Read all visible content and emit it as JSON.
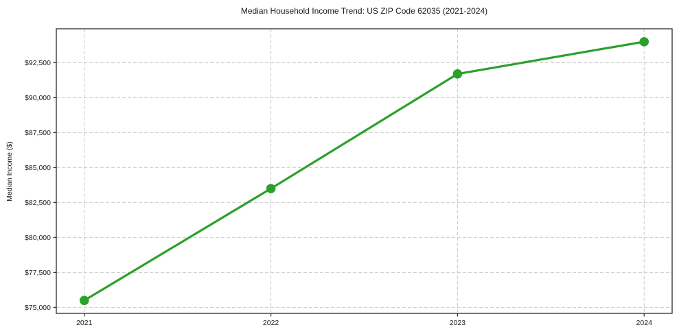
{
  "chart_data": {
    "type": "line",
    "title": "Median Household Income Trend: US ZIP Code 62035 (2021-2024)",
    "xlabel": "",
    "ylabel": "Median Income ($)",
    "categories": [
      "2021",
      "2022",
      "2023",
      "2024"
    ],
    "values": [
      75500,
      83500,
      91700,
      94000
    ],
    "ylim": [
      74575,
      94925
    ],
    "yticks": [
      {
        "value": 75000,
        "label": "$75,000"
      },
      {
        "value": 77500,
        "label": "$77,500"
      },
      {
        "value": 80000,
        "label": "$80,000"
      },
      {
        "value": 82500,
        "label": "$82,500"
      },
      {
        "value": 85000,
        "label": "$85,000"
      },
      {
        "value": 87500,
        "label": "$87,500"
      },
      {
        "value": 90000,
        "label": "$90,000"
      },
      {
        "value": 92500,
        "label": "$92,500"
      }
    ],
    "grid": true,
    "grid_style": "dashed",
    "legend": false,
    "colors": {
      "line": "#2ca02c",
      "marker": "#2ca02c",
      "grid": "#c9c9c9",
      "spine": "#2b2b2b",
      "text": "#1a1a1a",
      "background": "#ffffff"
    }
  }
}
